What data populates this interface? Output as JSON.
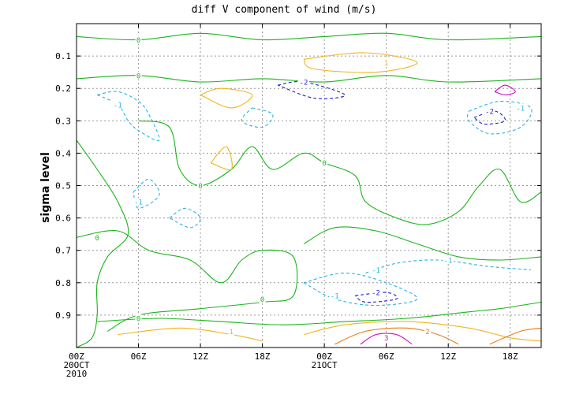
{
  "chart_data": {
    "type": "contour",
    "title": "diff V component of wind (m/s)",
    "ylabel": "sigma level",
    "xlabel": "",
    "y_ticks": [
      "0.1",
      "0.2",
      "0.3",
      "0.4",
      "0.5",
      "0.6",
      "0.7",
      "0.8",
      "0.9"
    ],
    "y_tick_values": [
      0.1,
      0.2,
      0.3,
      0.4,
      0.5,
      0.6,
      0.7,
      0.8,
      0.9
    ],
    "ylim": [
      1.0,
      0.0
    ],
    "x_ticks": [
      {
        "hour": 0,
        "lines": [
          "00Z",
          "20OCT",
          "2010"
        ]
      },
      {
        "hour": 6,
        "lines": [
          "06Z"
        ]
      },
      {
        "hour": 12,
        "lines": [
          "12Z"
        ]
      },
      {
        "hour": 18,
        "lines": [
          "18Z"
        ]
      },
      {
        "hour": 24,
        "lines": [
          "00Z",
          "21OCT"
        ]
      },
      {
        "hour": 30,
        "lines": [
          "06Z"
        ]
      },
      {
        "hour": 36,
        "lines": [
          "12Z"
        ]
      },
      {
        "hour": 42,
        "lines": [
          "18Z"
        ]
      }
    ],
    "xlim_hours": [
      0,
      45
    ],
    "grid": true,
    "levels": [
      {
        "value": -2,
        "color": "#1f1fc8",
        "dashed": true,
        "label": "-2"
      },
      {
        "value": -1,
        "color": "#27b4e6",
        "dashed": true,
        "label": "-1"
      },
      {
        "value": 0,
        "color": "#1ab41a",
        "dashed": false,
        "label": "0"
      },
      {
        "value": 1,
        "color": "#f0b41e",
        "dashed": false,
        "label": "1"
      },
      {
        "value": 2,
        "color": "#f07814",
        "dashed": false,
        "label": "2"
      },
      {
        "value": 3,
        "color": "#c80ac8",
        "dashed": false,
        "label": "3"
      }
    ],
    "features": [
      {
        "level": 0,
        "points": [
          [
            0,
            0.04
          ],
          [
            6,
            0.05
          ],
          [
            12,
            0.03
          ],
          [
            18,
            0.05
          ],
          [
            24,
            0.04
          ],
          [
            30,
            0.03
          ],
          [
            36,
            0.05
          ],
          [
            45,
            0.04
          ]
        ]
      },
      {
        "level": 0,
        "points": [
          [
            0,
            0.17
          ],
          [
            6,
            0.16
          ],
          [
            12,
            0.18
          ],
          [
            18,
            0.17
          ],
          [
            24,
            0.18
          ],
          [
            30,
            0.16
          ],
          [
            36,
            0.18
          ],
          [
            45,
            0.17
          ]
        ]
      },
      {
        "level": 0,
        "points": [
          [
            0,
            0.36
          ],
          [
            2,
            0.45
          ],
          [
            4,
            0.55
          ],
          [
            5,
            0.65
          ],
          [
            3,
            0.72
          ],
          [
            2,
            0.8
          ],
          [
            2,
            0.9
          ],
          [
            1.5,
            0.97
          ],
          [
            0,
            1.0
          ]
        ]
      },
      {
        "level": 0,
        "points": [
          [
            6,
            0.3
          ],
          [
            9,
            0.32
          ],
          [
            10,
            0.45
          ],
          [
            12,
            0.5
          ],
          [
            15,
            0.45
          ],
          [
            17,
            0.38
          ],
          [
            19,
            0.45
          ],
          [
            22,
            0.4
          ],
          [
            24,
            0.43
          ],
          [
            27,
            0.47
          ],
          [
            28,
            0.55
          ],
          [
            31,
            0.6
          ],
          [
            34,
            0.62
          ],
          [
            37,
            0.58
          ],
          [
            39,
            0.5
          ],
          [
            41,
            0.45
          ],
          [
            43,
            0.55
          ],
          [
            45,
            0.52
          ]
        ]
      },
      {
        "level": 0,
        "points": [
          [
            0,
            0.66
          ],
          [
            4,
            0.64
          ],
          [
            7,
            0.7
          ],
          [
            11,
            0.73
          ],
          [
            14,
            0.8
          ],
          [
            16,
            0.73
          ],
          [
            18,
            0.7
          ],
          [
            21,
            0.72
          ],
          [
            21,
            0.84
          ],
          [
            18,
            0.86
          ],
          [
            12,
            0.88
          ],
          [
            6,
            0.9
          ],
          [
            3,
            0.95
          ]
        ]
      },
      {
        "level": 0,
        "points": [
          [
            22,
            0.68
          ],
          [
            25,
            0.63
          ],
          [
            29,
            0.64
          ],
          [
            33,
            0.68
          ],
          [
            37,
            0.72
          ],
          [
            41,
            0.73
          ],
          [
            45,
            0.72
          ]
        ]
      },
      {
        "level": 0,
        "points": [
          [
            2,
            0.92
          ],
          [
            8,
            0.91
          ],
          [
            14,
            0.92
          ],
          [
            20,
            0.93
          ],
          [
            26,
            0.92
          ],
          [
            32,
            0.91
          ],
          [
            38,
            0.89
          ],
          [
            41,
            0.88
          ],
          [
            45,
            0.86
          ]
        ]
      },
      {
        "level": -1,
        "points": [
          [
            2,
            0.22
          ],
          [
            4,
            0.25
          ],
          [
            5,
            0.3
          ],
          [
            6,
            0.33
          ],
          [
            8,
            0.36
          ],
          [
            7,
            0.28
          ],
          [
            6,
            0.24
          ],
          [
            4,
            0.21
          ],
          [
            2,
            0.22
          ]
        ]
      },
      {
        "level": -1,
        "points": [
          [
            5.5,
            0.52
          ],
          [
            7,
            0.48
          ],
          [
            8,
            0.53
          ],
          [
            6,
            0.57
          ],
          [
            5.5,
            0.52
          ]
        ]
      },
      {
        "level": -1,
        "points": [
          [
            9,
            0.6
          ],
          [
            10.5,
            0.57
          ],
          [
            12,
            0.6
          ],
          [
            11,
            0.63
          ],
          [
            9,
            0.6
          ]
        ]
      },
      {
        "level": -1,
        "points": [
          [
            28,
            0.77
          ],
          [
            31,
            0.74
          ],
          [
            35,
            0.73
          ],
          [
            40,
            0.75
          ],
          [
            44,
            0.76
          ]
        ]
      },
      {
        "level": -1,
        "points": [
          [
            22,
            0.8
          ],
          [
            25,
            0.85
          ],
          [
            29,
            0.87
          ],
          [
            33,
            0.85
          ],
          [
            30,
            0.8
          ],
          [
            26,
            0.77
          ],
          [
            22,
            0.8
          ]
        ]
      },
      {
        "level": -1,
        "points": [
          [
            38,
            0.27
          ],
          [
            41,
            0.24
          ],
          [
            44,
            0.26
          ],
          [
            43,
            0.32
          ],
          [
            40,
            0.34
          ],
          [
            38,
            0.3
          ],
          [
            38,
            0.27
          ]
        ]
      },
      {
        "level": -1,
        "points": [
          [
            17,
            0.26
          ],
          [
            19,
            0.28
          ],
          [
            18,
            0.32
          ],
          [
            16,
            0.3
          ],
          [
            17,
            0.26
          ]
        ]
      },
      {
        "level": -2,
        "points": [
          [
            19.5,
            0.19
          ],
          [
            22,
            0.18
          ],
          [
            26,
            0.22
          ],
          [
            23,
            0.23
          ],
          [
            19.5,
            0.19
          ]
        ]
      },
      {
        "level": -2,
        "points": [
          [
            38.5,
            0.29
          ],
          [
            40.5,
            0.27
          ],
          [
            41.5,
            0.3
          ],
          [
            39.5,
            0.31
          ],
          [
            38.5,
            0.29
          ]
        ]
      },
      {
        "level": -2,
        "points": [
          [
            27,
            0.84
          ],
          [
            30,
            0.83
          ],
          [
            31,
            0.85
          ],
          [
            28,
            0.86
          ],
          [
            27,
            0.84
          ]
        ]
      },
      {
        "level": 1,
        "points": [
          [
            12,
            0.22
          ],
          [
            14,
            0.2
          ],
          [
            17,
            0.22
          ],
          [
            15,
            0.26
          ],
          [
            12,
            0.22
          ]
        ]
      },
      {
        "level": 1,
        "points": [
          [
            22,
            0.11
          ],
          [
            28,
            0.09
          ],
          [
            33,
            0.12
          ],
          [
            29,
            0.15
          ],
          [
            23,
            0.14
          ],
          [
            22,
            0.11
          ]
        ]
      },
      {
        "level": 1,
        "points": [
          [
            13,
            0.43
          ],
          [
            14.5,
            0.38
          ],
          [
            15,
            0.45
          ],
          [
            13,
            0.43
          ]
        ]
      },
      {
        "level": 1,
        "points": [
          [
            22,
            0.96
          ],
          [
            26,
            0.93
          ],
          [
            32,
            0.92
          ],
          [
            38,
            0.94
          ],
          [
            42,
            0.97
          ],
          [
            45,
            0.98
          ]
        ]
      },
      {
        "level": 1,
        "points": [
          [
            4,
            0.96
          ],
          [
            10,
            0.94
          ],
          [
            15,
            0.96
          ],
          [
            18,
            0.98
          ]
        ]
      },
      {
        "level": 2,
        "points": [
          [
            25,
            0.99
          ],
          [
            28,
            0.95
          ],
          [
            32,
            0.94
          ],
          [
            35,
            0.96
          ],
          [
            37,
            0.99
          ]
        ]
      },
      {
        "level": 2,
        "points": [
          [
            40,
            0.99
          ],
          [
            43,
            0.95
          ],
          [
            45,
            0.94
          ]
        ]
      },
      {
        "level": 3,
        "points": [
          [
            27.5,
            0.99
          ],
          [
            29,
            0.96
          ],
          [
            31,
            0.96
          ],
          [
            32.5,
            0.99
          ]
        ]
      },
      {
        "level": 3,
        "points": [
          [
            40.5,
            0.21
          ],
          [
            41.5,
            0.19
          ],
          [
            42.5,
            0.21
          ],
          [
            41.5,
            0.22
          ],
          [
            40.5,
            0.21
          ]
        ]
      }
    ],
    "labels": [
      {
        "text": "0",
        "level": 0,
        "x": 6,
        "y": 0.05
      },
      {
        "text": "0",
        "level": 0,
        "x": 6,
        "y": 0.16
      },
      {
        "text": "0",
        "level": 0,
        "x": 12,
        "y": 0.5
      },
      {
        "text": "0",
        "level": 0,
        "x": 24,
        "y": 0.43
      },
      {
        "text": "0",
        "level": 0,
        "x": 18,
        "y": 0.85
      },
      {
        "text": "0",
        "level": 0,
        "x": 6,
        "y": 0.91
      },
      {
        "text": "0",
        "level": 0,
        "x": 2,
        "y": 0.66
      },
      {
        "text": "-1",
        "level": -1,
        "x": 4,
        "y": 0.25
      },
      {
        "text": "-1",
        "level": -1,
        "x": 6,
        "y": 0.55
      },
      {
        "text": "-1",
        "level": -1,
        "x": 29,
        "y": 0.76
      },
      {
        "text": "-1",
        "level": -1,
        "x": 36,
        "y": 0.73
      },
      {
        "text": "-1",
        "level": -1,
        "x": 25,
        "y": 0.84
      },
      {
        "text": "-1",
        "level": -1,
        "x": 43,
        "y": 0.26
      },
      {
        "text": "-2",
        "level": -2,
        "x": 22,
        "y": 0.18
      },
      {
        "text": "-2",
        "level": -2,
        "x": 40,
        "y": 0.27
      },
      {
        "text": "-2",
        "level": -2,
        "x": 29,
        "y": 0.83
      },
      {
        "text": "1",
        "level": 1,
        "x": 30,
        "y": 0.12
      },
      {
        "text": "1",
        "level": 1,
        "x": 15,
        "y": 0.95
      },
      {
        "text": "2",
        "level": 2,
        "x": 34,
        "y": 0.95
      },
      {
        "text": "3",
        "level": 3,
        "x": 30,
        "y": 0.97
      }
    ]
  }
}
